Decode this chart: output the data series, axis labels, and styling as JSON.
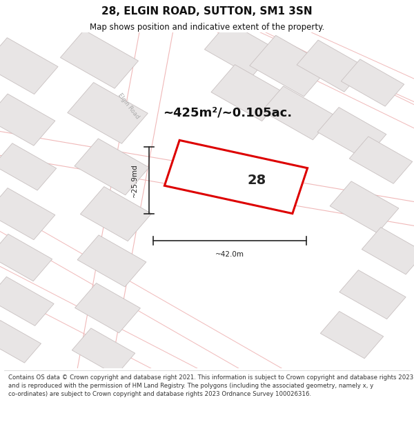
{
  "title": "28, ELGIN ROAD, SUTTON, SM1 3SN",
  "subtitle": "Map shows position and indicative extent of the property.",
  "area_text": "~425m²/~0.105ac.",
  "property_number": "28",
  "dim_width": "~42.0m",
  "dim_height": "~25.9md",
  "footer": "Contains OS data © Crown copyright and database right 2021. This information is subject to Crown copyright and database rights 2023 and is reproduced with the permission of HM Land Registry. The polygons (including the associated geometry, namely x, y co-ordinates) are subject to Crown copyright and database rights 2023 Ordnance Survey 100026316.",
  "map_bg": "#ffffff",
  "road_line_color": "#f0b8b8",
  "road_label_color": "#aaaaaa",
  "property_fill": "#ffffff",
  "property_edge": "#dd0000",
  "building_fill": "#e8e5e5",
  "building_edge": "#c8c0c0",
  "title_color": "#111111",
  "footer_color": "#333333",
  "dim_line_color": "#222222",
  "title_fontsize": 11,
  "subtitle_fontsize": 8.5,
  "area_fontsize": 13,
  "footer_fontsize": 6.2
}
